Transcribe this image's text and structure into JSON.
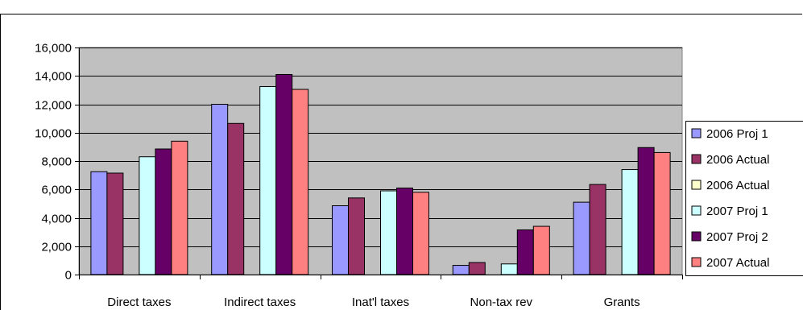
{
  "chart_data": {
    "type": "bar",
    "title": "",
    "xlabel": "",
    "ylabel": "",
    "ylim": [
      0,
      16000
    ],
    "yticks": [
      "0",
      "2,000",
      "4,000",
      "6,000",
      "8,000",
      "10,000",
      "12,000",
      "14,000",
      "16,000"
    ],
    "categories": [
      "Direct taxes",
      "Indirect taxes",
      "Inat'l taxes",
      "Non-tax rev",
      "Grants"
    ],
    "grid": true,
    "plot_background": "#c0c0c0",
    "legend_position": "right",
    "series": [
      {
        "name": "2006 Proj 1",
        "color": "#9999ff",
        "values": [
          7250,
          12000,
          4850,
          650,
          5100
        ]
      },
      {
        "name": "2006 Actual",
        "color": "#993366",
        "values": [
          7150,
          10650,
          5400,
          850,
          6350
        ]
      },
      {
        "name": "2006 Actual",
        "color": "#ffffcc",
        "values": [
          0,
          0,
          0,
          0,
          0
        ]
      },
      {
        "name": "2007 Proj 1",
        "color": "#ccffff",
        "values": [
          8300,
          13250,
          5900,
          750,
          7400
        ]
      },
      {
        "name": "2007 Proj 2",
        "color": "#660066",
        "values": [
          8850,
          14100,
          6100,
          3150,
          8950
        ]
      },
      {
        "name": "2007 Actual",
        "color": "#ff8080",
        "values": [
          9400,
          13050,
          5800,
          3400,
          8600
        ]
      }
    ]
  }
}
